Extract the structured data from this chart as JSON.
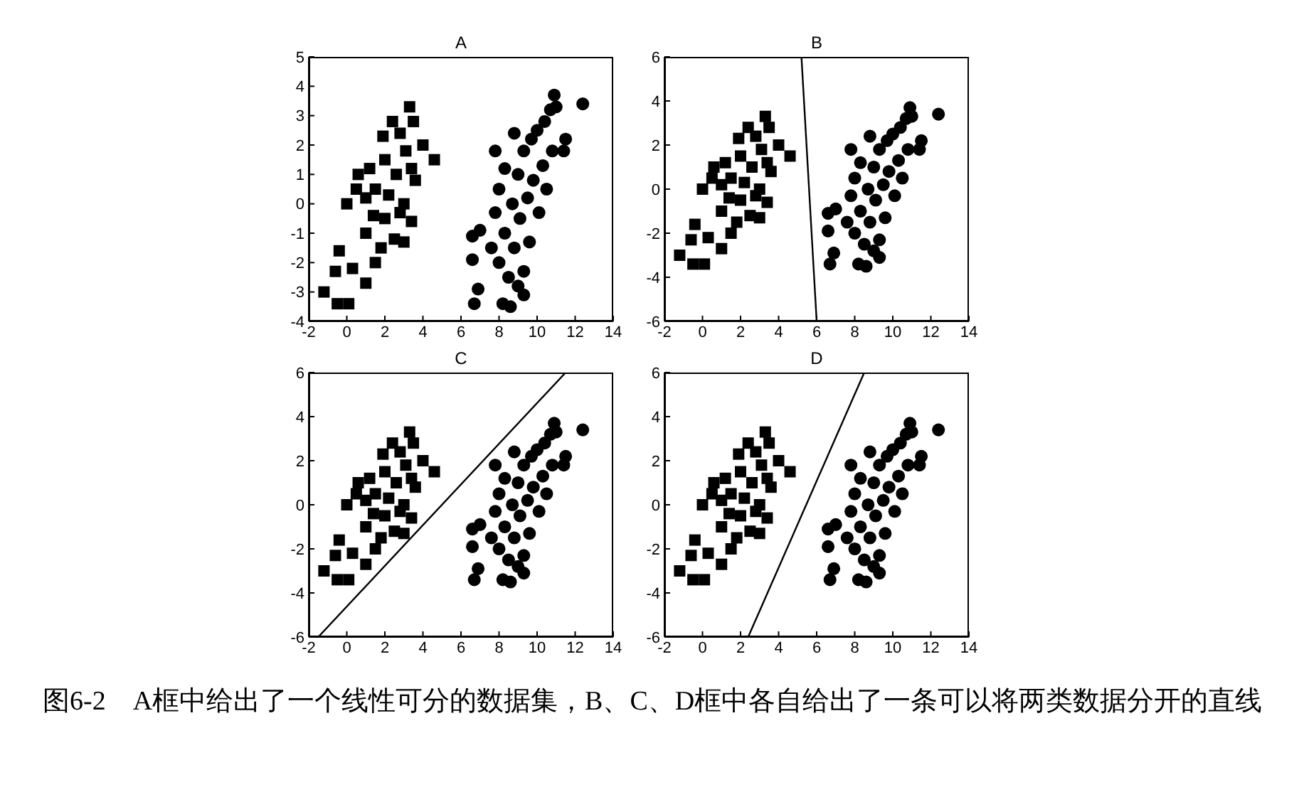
{
  "chart_data": [
    {
      "type": "scatter",
      "title": "A",
      "xlim": [
        -2,
        14
      ],
      "xticks": [
        -2,
        0,
        2,
        4,
        6,
        8,
        10,
        12,
        14
      ],
      "ylim": [
        -4,
        5
      ],
      "yticks": [
        -4,
        -3,
        -2,
        -1,
        0,
        1,
        2,
        3,
        4,
        5
      ],
      "grid": false,
      "series": [
        {
          "color": "#000000",
          "marker": "square",
          "x": [
            -1.2,
            -0.5,
            0.1,
            -0.6,
            -0.4,
            0,
            0.3,
            0.5,
            0.6,
            1,
            1,
            1,
            1.2,
            1.5,
            1.5,
            1.8,
            1.9,
            2,
            2,
            2.2,
            2.4,
            2.5,
            2.6,
            2.8,
            3,
            3,
            3.1,
            3.3,
            3.4,
            3.5,
            3.6,
            4,
            4.6,
            3.4,
            2.8,
            1.4
          ],
          "values": [
            -3,
            -3.4,
            -3.4,
            -2.3,
            -1.6,
            0,
            -2.2,
            0.5,
            1,
            -2.7,
            -1,
            0.2,
            1.2,
            -2,
            0.5,
            -1.5,
            2.3,
            1.5,
            -0.5,
            0.3,
            2.8,
            -1.2,
            1,
            2.4,
            -1.3,
            0,
            1.8,
            3.3,
            -0.6,
            2.8,
            0.8,
            2,
            1.5,
            1.2,
            -0.3,
            -0.4
          ]
        },
        {
          "color": "#000000",
          "marker": "circle",
          "x": [
            6.6,
            7,
            6.6,
            6.9,
            6.7,
            7.8,
            8.2,
            8.6,
            8.8,
            9.3,
            9.3,
            7.6,
            7.8,
            8,
            8,
            8.3,
            8.3,
            8.5,
            8.7,
            8.8,
            9,
            9.1,
            9.3,
            9.5,
            9.6,
            9.7,
            9.8,
            10,
            10.1,
            10.3,
            10.4,
            10.5,
            10.7,
            10.9,
            11,
            10.8,
            11.5,
            11.4,
            12.4,
            9
          ],
          "values": [
            -1.1,
            -0.9,
            -1.9,
            -2.9,
            -3.4,
            1.8,
            -3.4,
            -3.5,
            2.4,
            -3.1,
            -2.3,
            -1.5,
            -0.3,
            -2,
            0.5,
            -1,
            1.2,
            -2.5,
            0,
            -1.5,
            1,
            -0.5,
            1.8,
            0.2,
            -1.3,
            2.2,
            0.8,
            2.5,
            -0.3,
            1.3,
            2.8,
            0.5,
            3.2,
            3.7,
            3.3,
            1.8,
            2.2,
            1.8,
            3.4,
            -2.8
          ]
        }
      ]
    },
    {
      "type": "scatter",
      "title": "B",
      "xlim": [
        -2,
        14
      ],
      "xticks": [
        -2,
        0,
        2,
        4,
        6,
        8,
        10,
        12,
        14
      ],
      "ylim": [
        -6,
        6
      ],
      "yticks": [
        -6,
        -4,
        -2,
        0,
        2,
        4,
        6
      ],
      "grid": false,
      "series": [
        {
          "color": "#000000",
          "marker": "square",
          "x": [
            -1.2,
            -0.5,
            0.1,
            -0.6,
            -0.4,
            0,
            0.3,
            0.5,
            0.6,
            1,
            1,
            1,
            1.2,
            1.5,
            1.5,
            1.8,
            1.9,
            2,
            2,
            2.2,
            2.4,
            2.5,
            2.6,
            2.8,
            3,
            3,
            3.1,
            3.3,
            3.4,
            3.5,
            3.6,
            4,
            4.6,
            3.4,
            2.8,
            1.4
          ],
          "values": [
            -3,
            -3.4,
            -3.4,
            -2.3,
            -1.6,
            0,
            -2.2,
            0.5,
            1,
            -2.7,
            -1,
            0.2,
            1.2,
            -2,
            0.5,
            -1.5,
            2.3,
            1.5,
            -0.5,
            0.3,
            2.8,
            -1.2,
            1,
            2.4,
            -1.3,
            0,
            1.8,
            3.3,
            -0.6,
            2.8,
            0.8,
            2,
            1.5,
            1.2,
            -0.3,
            -0.4
          ]
        },
        {
          "color": "#000000",
          "marker": "circle",
          "x": [
            6.6,
            7,
            6.6,
            6.9,
            6.7,
            7.8,
            8.2,
            8.6,
            8.8,
            9.3,
            9.3,
            7.6,
            7.8,
            8,
            8,
            8.3,
            8.3,
            8.5,
            8.7,
            8.8,
            9,
            9.1,
            9.3,
            9.5,
            9.6,
            9.7,
            9.8,
            10,
            10.1,
            10.3,
            10.4,
            10.5,
            10.7,
            10.9,
            11,
            10.8,
            11.5,
            11.4,
            12.4,
            9
          ],
          "values": [
            -1.1,
            -0.9,
            -1.9,
            -2.9,
            -3.4,
            1.8,
            -3.4,
            -3.5,
            2.4,
            -3.1,
            -2.3,
            -1.5,
            -0.3,
            -2,
            0.5,
            -1,
            1.2,
            -2.5,
            0,
            -1.5,
            1,
            -0.5,
            1.8,
            0.2,
            -1.3,
            2.2,
            0.8,
            2.5,
            -0.3,
            1.3,
            2.8,
            0.5,
            3.2,
            3.7,
            3.3,
            1.8,
            2.2,
            1.8,
            3.4,
            -2.8
          ]
        },
        {
          "type": "line",
          "color": "#000000",
          "marker": "none",
          "x": [
            5.2,
            6
          ],
          "values": [
            6,
            -6
          ]
        }
      ]
    },
    {
      "type": "scatter",
      "title": "C",
      "xlim": [
        -2,
        14
      ],
      "xticks": [
        -2,
        0,
        2,
        4,
        6,
        8,
        10,
        12,
        14
      ],
      "ylim": [
        -6,
        6
      ],
      "yticks": [
        -6,
        -4,
        -2,
        0,
        2,
        4,
        6
      ],
      "grid": false,
      "series": [
        {
          "color": "#000000",
          "marker": "square",
          "x": [
            -1.2,
            -0.5,
            0.1,
            -0.6,
            -0.4,
            0,
            0.3,
            0.5,
            0.6,
            1,
            1,
            1,
            1.2,
            1.5,
            1.5,
            1.8,
            1.9,
            2,
            2,
            2.2,
            2.4,
            2.5,
            2.6,
            2.8,
            3,
            3,
            3.1,
            3.3,
            3.4,
            3.5,
            3.6,
            4,
            4.6,
            3.4,
            2.8,
            1.4
          ],
          "values": [
            -3,
            -3.4,
            -3.4,
            -2.3,
            -1.6,
            0,
            -2.2,
            0.5,
            1,
            -2.7,
            -1,
            0.2,
            1.2,
            -2,
            0.5,
            -1.5,
            2.3,
            1.5,
            -0.5,
            0.3,
            2.8,
            -1.2,
            1,
            2.4,
            -1.3,
            0,
            1.8,
            3.3,
            -0.6,
            2.8,
            0.8,
            2,
            1.5,
            1.2,
            -0.3,
            -0.4
          ]
        },
        {
          "color": "#000000",
          "marker": "circle",
          "x": [
            6.6,
            7,
            6.6,
            6.9,
            6.7,
            7.8,
            8.2,
            8.6,
            8.8,
            9.3,
            9.3,
            7.6,
            7.8,
            8,
            8,
            8.3,
            8.3,
            8.5,
            8.7,
            8.8,
            9,
            9.1,
            9.3,
            9.5,
            9.6,
            9.7,
            9.8,
            10,
            10.1,
            10.3,
            10.4,
            10.5,
            10.7,
            10.9,
            11,
            10.8,
            11.5,
            11.4,
            12.4,
            9
          ],
          "values": [
            -1.1,
            -0.9,
            -1.9,
            -2.9,
            -3.4,
            1.8,
            -3.4,
            -3.5,
            2.4,
            -3.1,
            -2.3,
            -1.5,
            -0.3,
            -2,
            0.5,
            -1,
            1.2,
            -2.5,
            0,
            -1.5,
            1,
            -0.5,
            1.8,
            0.2,
            -1.3,
            2.2,
            0.8,
            2.5,
            -0.3,
            1.3,
            2.8,
            0.5,
            3.2,
            3.7,
            3.3,
            1.8,
            2.2,
            1.8,
            3.4,
            -2.8
          ]
        },
        {
          "type": "line",
          "color": "#000000",
          "marker": "none",
          "x": [
            -1.5,
            11.5
          ],
          "values": [
            -6,
            6
          ]
        }
      ]
    },
    {
      "type": "scatter",
      "title": "D",
      "xlim": [
        -2,
        14
      ],
      "xticks": [
        -2,
        0,
        2,
        4,
        6,
        8,
        10,
        12,
        14
      ],
      "ylim": [
        -6,
        6
      ],
      "yticks": [
        -6,
        -4,
        -2,
        0,
        2,
        4,
        6
      ],
      "grid": false,
      "annotations": [
        "图6-2　A框中给出了一个线性可分的数据集，B、C、D框中各自给出了一条可以将两类数据分开的直线"
      ],
      "series": [
        {
          "color": "#000000",
          "marker": "square",
          "x": [
            -1.2,
            -0.5,
            0.1,
            -0.6,
            -0.4,
            0,
            0.3,
            0.5,
            0.6,
            1,
            1,
            1,
            1.2,
            1.5,
            1.5,
            1.8,
            1.9,
            2,
            2,
            2.2,
            2.4,
            2.5,
            2.6,
            2.8,
            3,
            3,
            3.1,
            3.3,
            3.4,
            3.5,
            3.6,
            4,
            4.6,
            3.4,
            2.8,
            1.4
          ],
          "values": [
            -3,
            -3.4,
            -3.4,
            -2.3,
            -1.6,
            0,
            -2.2,
            0.5,
            1,
            -2.7,
            -1,
            0.2,
            1.2,
            -2,
            0.5,
            -1.5,
            2.3,
            1.5,
            -0.5,
            0.3,
            2.8,
            -1.2,
            1,
            2.4,
            -1.3,
            0,
            1.8,
            3.3,
            -0.6,
            2.8,
            0.8,
            2,
            1.5,
            1.2,
            -0.3,
            -0.4
          ]
        },
        {
          "color": "#000000",
          "marker": "circle",
          "x": [
            6.6,
            7,
            6.6,
            6.9,
            6.7,
            7.8,
            8.2,
            8.6,
            8.8,
            9.3,
            9.3,
            7.6,
            7.8,
            8,
            8,
            8.3,
            8.3,
            8.5,
            8.7,
            8.8,
            9,
            9.1,
            9.3,
            9.5,
            9.6,
            9.7,
            9.8,
            10,
            10.1,
            10.3,
            10.4,
            10.5,
            10.7,
            10.9,
            11,
            10.8,
            11.5,
            11.4,
            12.4,
            9
          ],
          "values": [
            -1.1,
            -0.9,
            -1.9,
            -2.9,
            -3.4,
            1.8,
            -3.4,
            -3.5,
            2.4,
            -3.1,
            -2.3,
            -1.5,
            -0.3,
            -2,
            0.5,
            -1,
            1.2,
            -2.5,
            0,
            -1.5,
            1,
            -0.5,
            1.8,
            0.2,
            -1.3,
            2.2,
            0.8,
            2.5,
            -0.3,
            1.3,
            2.8,
            0.5,
            3.2,
            3.7,
            3.3,
            1.8,
            2.2,
            1.8,
            3.4,
            -2.8
          ]
        },
        {
          "type": "line",
          "color": "#000000",
          "marker": "none",
          "x": [
            2.4,
            8.5
          ],
          "values": [
            -6,
            6
          ]
        }
      ]
    }
  ]
}
